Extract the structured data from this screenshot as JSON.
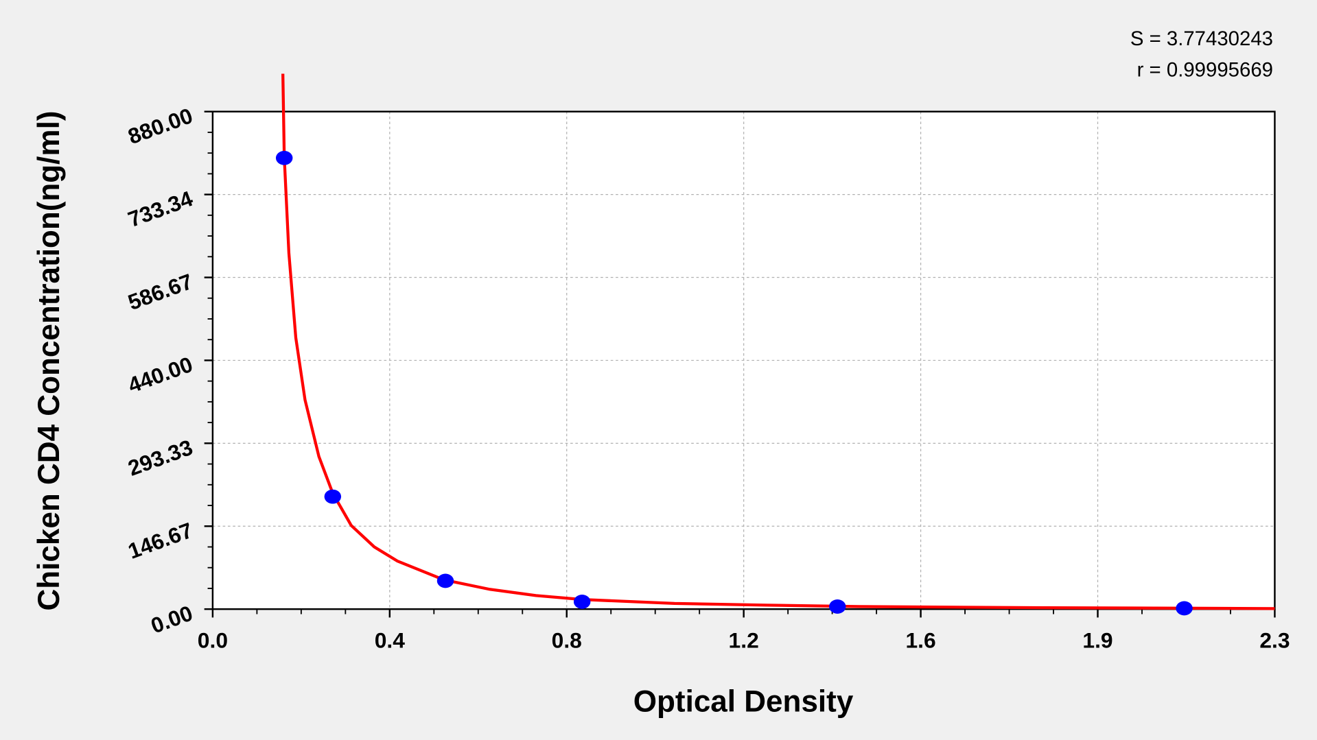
{
  "chart_data": {
    "type": "scatter",
    "title": "",
    "xlabel": "Optical Density",
    "ylabel": "Chicken CD4 Concentration(ng/ml)",
    "xlim": [
      0,
      2.3
    ],
    "ylim": [
      0,
      880
    ],
    "x_ticks": [
      "0.0",
      "0.4",
      "0.8",
      "1.2",
      "1.6",
      "1.9",
      "2.3"
    ],
    "y_ticks": [
      "0.00",
      "146.67",
      "293.33",
      "440.00",
      "586.67",
      "733.34",
      "880.00"
    ],
    "grid": true,
    "points": [
      {
        "x": 0.155,
        "y": 798
      },
      {
        "x": 0.26,
        "y": 199
      },
      {
        "x": 0.504,
        "y": 50
      },
      {
        "x": 0.8,
        "y": 13
      },
      {
        "x": 1.353,
        "y": 4.5
      },
      {
        "x": 2.104,
        "y": 1.5
      }
    ],
    "fit_curve": [
      [
        0.152,
        947
      ],
      [
        0.155,
        800
      ],
      [
        0.165,
        630
      ],
      [
        0.18,
        480
      ],
      [
        0.2,
        370
      ],
      [
        0.23,
        270
      ],
      [
        0.26,
        205
      ],
      [
        0.3,
        148
      ],
      [
        0.35,
        110
      ],
      [
        0.4,
        85
      ],
      [
        0.5,
        52
      ],
      [
        0.6,
        35
      ],
      [
        0.7,
        24
      ],
      [
        0.8,
        17
      ],
      [
        1.0,
        10
      ],
      [
        1.2,
        7
      ],
      [
        1.4,
        4.5
      ],
      [
        1.8,
        2.5
      ],
      [
        2.3,
        1
      ]
    ],
    "annotations": [
      "S = 3.77430243",
      "r = 0.99995669"
    ],
    "colors": {
      "points": "#0000ff",
      "curve": "#ff0000",
      "plot_bg": "#ffffff",
      "page_bg": "#f0f0f0",
      "grid": "#b0b0b0"
    }
  }
}
